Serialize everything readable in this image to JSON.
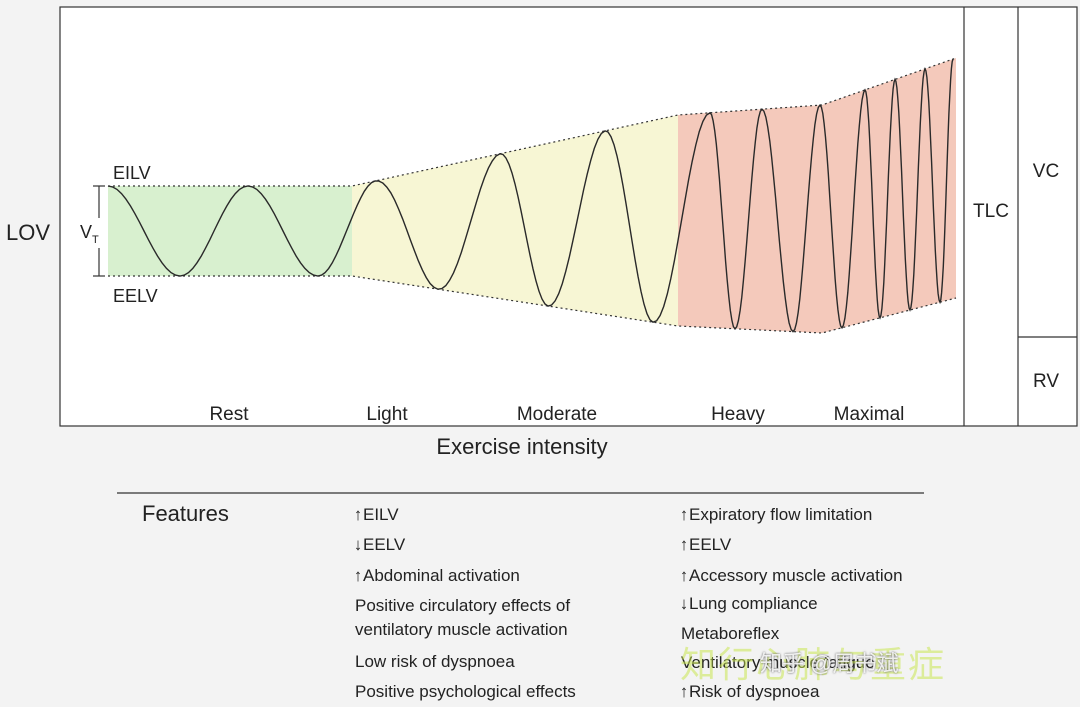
{
  "axis": {
    "y_label": "LOV",
    "x_label": "Exercise intensity"
  },
  "volume_labels": {
    "eilv": "EILV",
    "eelv": "EELV",
    "vt": "V",
    "vt_sub": "T",
    "tlc": "TLC",
    "vc": "VC",
    "rv": "RV"
  },
  "intensity_levels": [
    "Rest",
    "Light",
    "Moderate",
    "Heavy",
    "Maximal"
  ],
  "zone_colors": {
    "rest": "#d8f0cf",
    "light_moderate": "#f7f6d4",
    "heavy_maximal": "#f4c9bb"
  },
  "features": {
    "title": "Features",
    "left": [
      {
        "arrow": "↑",
        "text": "EILV"
      },
      {
        "arrow": "↓",
        "text": "EELV"
      },
      {
        "arrow": "↑",
        "text": "Abdominal activation"
      },
      {
        "arrow": "",
        "text": "Positive circulatory effects of"
      },
      {
        "arrow": "",
        "text": "ventilatory muscle activation"
      },
      {
        "arrow": "",
        "text": "Low risk of dyspnoea"
      },
      {
        "arrow": "",
        "text": "Positive psychological effects"
      }
    ],
    "right": [
      {
        "arrow": "↑",
        "text": "Expiratory flow limitation"
      },
      {
        "arrow": "↑",
        "text": "EELV"
      },
      {
        "arrow": "↑",
        "text": "Accessory muscle activation"
      },
      {
        "arrow": "↓",
        "text": "Lung compliance"
      },
      {
        "arrow": "",
        "text": "Metaboreflex"
      },
      {
        "arrow": "",
        "text": "Ventilatory muscle fatigue"
      },
      {
        "arrow": "↑",
        "text": "Risk of dyspnoea"
      }
    ]
  },
  "watermark": {
    "main": "知行心肺与重症",
    "overlay": "知乎 @周书斌"
  }
}
